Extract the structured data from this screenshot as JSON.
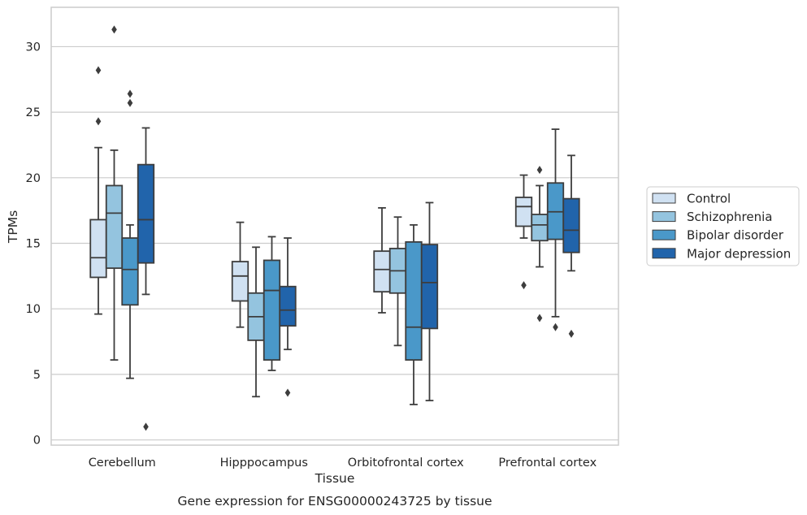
{
  "chart_data": {
    "type": "box",
    "caption": "Gene expression for ENSG00000243725 by tissue",
    "xlabel": "Tissue",
    "ylabel": "TPMs",
    "ylim": [
      -0.4,
      33
    ],
    "yticks": [
      0,
      5,
      10,
      15,
      20,
      25,
      30
    ],
    "grid": "horizontal",
    "legend_position": "right",
    "categories": [
      "Cerebellum",
      "Hipppocampus",
      "Orbitofrontal cortex",
      "Prefrontal cortex"
    ],
    "series": [
      {
        "name": "Control",
        "color": "#d0e1f2",
        "boxes": [
          {
            "whisker_low": 9.6,
            "q1": 12.4,
            "median": 13.9,
            "q3": 16.8,
            "whisker_high": 22.3,
            "outliers": [
              24.3,
              28.2
            ]
          },
          {
            "whisker_low": 8.6,
            "q1": 10.6,
            "median": 12.5,
            "q3": 13.6,
            "whisker_high": 16.6,
            "outliers": []
          },
          {
            "whisker_low": 9.7,
            "q1": 11.3,
            "median": 13.0,
            "q3": 14.4,
            "whisker_high": 17.7,
            "outliers": []
          },
          {
            "whisker_low": 15.4,
            "q1": 16.3,
            "median": 17.8,
            "q3": 18.5,
            "whisker_high": 20.2,
            "outliers": [
              11.8
            ]
          }
        ]
      },
      {
        "name": "Schizophrenia",
        "color": "#94c4df",
        "boxes": [
          {
            "whisker_low": 6.1,
            "q1": 13.1,
            "median": 17.3,
            "q3": 19.4,
            "whisker_high": 22.1,
            "outliers": [
              31.3
            ]
          },
          {
            "whisker_low": 3.3,
            "q1": 7.6,
            "median": 9.4,
            "q3": 11.2,
            "whisker_high": 14.7,
            "outliers": []
          },
          {
            "whisker_low": 7.2,
            "q1": 11.2,
            "median": 12.9,
            "q3": 14.6,
            "whisker_high": 17.0,
            "outliers": []
          },
          {
            "whisker_low": 13.2,
            "q1": 15.2,
            "median": 16.4,
            "q3": 17.2,
            "whisker_high": 19.4,
            "outliers": [
              20.6,
              9.3
            ]
          }
        ]
      },
      {
        "name": "Bipolar disorder",
        "color": "#4a98c9",
        "boxes": [
          {
            "whisker_low": 4.7,
            "q1": 10.3,
            "median": 13.0,
            "q3": 15.4,
            "whisker_high": 16.4,
            "outliers": [
              25.7,
              26.4
            ]
          },
          {
            "whisker_low": 5.3,
            "q1": 6.1,
            "median": 11.4,
            "q3": 13.7,
            "whisker_high": 15.5,
            "outliers": []
          },
          {
            "whisker_low": 2.7,
            "q1": 6.1,
            "median": 8.6,
            "q3": 15.1,
            "whisker_high": 16.4,
            "outliers": []
          },
          {
            "whisker_low": 9.4,
            "q1": 15.3,
            "median": 17.4,
            "q3": 19.6,
            "whisker_high": 23.7,
            "outliers": [
              8.6
            ]
          }
        ]
      },
      {
        "name": "Major depression",
        "color": "#2164ab",
        "boxes": [
          {
            "whisker_low": 11.1,
            "q1": 13.5,
            "median": 16.8,
            "q3": 21.0,
            "whisker_high": 23.8,
            "outliers": [
              1.0
            ]
          },
          {
            "whisker_low": 6.9,
            "q1": 8.7,
            "median": 9.9,
            "q3": 11.7,
            "whisker_high": 15.4,
            "outliers": [
              3.6
            ]
          },
          {
            "whisker_low": 3.0,
            "q1": 8.5,
            "median": 12.0,
            "q3": 14.9,
            "whisker_high": 18.1,
            "outliers": []
          },
          {
            "whisker_low": 12.9,
            "q1": 14.3,
            "median": 16.0,
            "q3": 18.4,
            "whisker_high": 21.7,
            "outliers": [
              8.1
            ]
          }
        ]
      }
    ]
  }
}
